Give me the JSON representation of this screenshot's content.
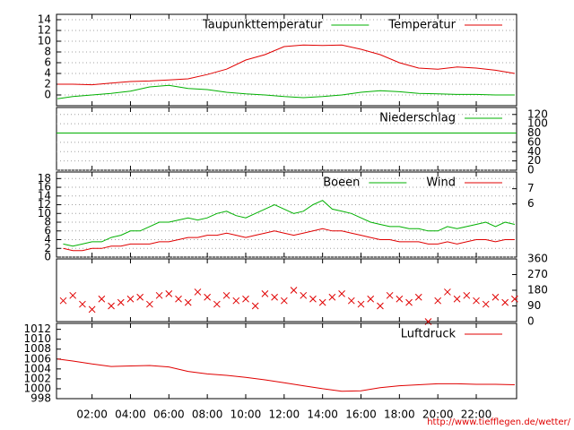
{
  "footer": "http://www.tiefflegen.de/wetter/",
  "chart_data": [
    {
      "type": "line",
      "xlim": [
        0.15,
        24.1
      ],
      "ylim": [
        -2,
        15
      ],
      "yticks": [
        0,
        2,
        4,
        6,
        8,
        10,
        12,
        14
      ],
      "grid": true,
      "x": [
        0.2,
        1,
        2,
        3,
        4,
        5,
        6,
        7,
        8,
        9,
        10,
        11,
        12,
        13,
        14,
        15,
        16,
        17,
        18,
        19,
        20,
        21,
        22,
        23,
        24
      ],
      "series": [
        {
          "name": "Temperatur",
          "color": "#e00000",
          "values": [
            2,
            2,
            1.9,
            2.2,
            2.5,
            2.6,
            2.8,
            3,
            3.8,
            4.8,
            6.5,
            7.5,
            9,
            9.3,
            9.2,
            9.3,
            8.5,
            7.5,
            6,
            5,
            4.8,
            5.2,
            5,
            4.6,
            4
          ]
        },
        {
          "name": "Taupunkttemperatur",
          "color": "#00b000",
          "values": [
            -0.7,
            -0.3,
            0,
            0.3,
            0.7,
            1.5,
            1.8,
            1.2,
            1,
            0.5,
            0.2,
            0,
            -0.3,
            -0.5,
            -0.3,
            0,
            0.5,
            0.8,
            0.6,
            0.3,
            0.2,
            0.1,
            0.1,
            0,
            0
          ]
        }
      ]
    },
    {
      "type": "line",
      "xlim": [
        0.15,
        24.1
      ],
      "y2lim": [
        0,
        135
      ],
      "y2ticks": [
        0,
        20,
        40,
        60,
        80,
        100,
        120
      ],
      "grid": true,
      "x": [
        0.15,
        24.1
      ],
      "series": [
        {
          "name": "Niederschlag",
          "color": "#00b000",
          "axis": "y2",
          "values": [
            80,
            80
          ]
        }
      ]
    },
    {
      "type": "line",
      "xlim": [
        0.15,
        24.1
      ],
      "ylim": [
        0,
        19.5
      ],
      "yticks": [
        0,
        2,
        4,
        6,
        8,
        10,
        12,
        14,
        16,
        18
      ],
      "y2lim": [
        2.5,
        8.1
      ],
      "y2ticks": [
        6,
        7
      ],
      "grid": true,
      "x": [
        0.5,
        1,
        1.5,
        2,
        2.5,
        3,
        3.5,
        4,
        4.5,
        5,
        5.5,
        6,
        6.5,
        7,
        7.5,
        8,
        8.5,
        9,
        9.5,
        10,
        10.5,
        11,
        11.5,
        12,
        12.5,
        13,
        13.5,
        14,
        14.5,
        15,
        15.5,
        16,
        16.5,
        17,
        17.5,
        18,
        18.5,
        19,
        19.5,
        20,
        20.5,
        21,
        21.5,
        22,
        22.5,
        23,
        23.5,
        24
      ],
      "series": [
        {
          "name": "Wind",
          "color": "#e00000",
          "values": [
            2,
            1.5,
            1.5,
            2,
            2,
            2.5,
            2.5,
            3,
            3,
            3,
            3.5,
            3.5,
            4,
            4.5,
            4.5,
            5,
            5,
            5.5,
            5,
            4.5,
            5,
            5.5,
            6,
            5.5,
            5,
            5.5,
            6,
            6.5,
            6,
            6,
            5.5,
            5,
            4.5,
            4,
            4,
            3.5,
            3.5,
            3.5,
            3,
            3,
            3.5,
            3,
            3.5,
            4,
            4,
            3.5,
            4,
            4
          ]
        },
        {
          "name": "Boeen",
          "color": "#00b000",
          "values": [
            3,
            2.5,
            3,
            3.5,
            3.5,
            4.5,
            5,
            6,
            6,
            7,
            8,
            8,
            8.5,
            9,
            8.5,
            9,
            10,
            10.5,
            9.5,
            9,
            10,
            11,
            12,
            11,
            10,
            10.5,
            12,
            13,
            11,
            10.5,
            10,
            9,
            8,
            7.5,
            7,
            7,
            6.5,
            6.5,
            6,
            6,
            7,
            6.5,
            7,
            7.5,
            8,
            7,
            8,
            7.5
          ]
        }
      ]
    },
    {
      "type": "scatter",
      "xlim": [
        0.15,
        24.1
      ],
      "y2lim": [
        0,
        360
      ],
      "y2ticks": [
        0,
        90,
        180,
        270,
        360
      ],
      "x": [
        0.5,
        1,
        1.5,
        2,
        2.5,
        3,
        3.5,
        4,
        4.5,
        5,
        5.5,
        6,
        6.5,
        7,
        7.5,
        8,
        8.5,
        9,
        9.5,
        10,
        10.5,
        11,
        11.5,
        12,
        12.5,
        13,
        13.5,
        14,
        14.5,
        15,
        15.5,
        16,
        16.5,
        17,
        17.5,
        18,
        18.5,
        19,
        19.5,
        20,
        20.5,
        21,
        21.5,
        22,
        22.5,
        23,
        23.5,
        24
      ],
      "series": [
        {
          "color": "#e00000",
          "axis": "y2",
          "values": [
            120,
            150,
            100,
            70,
            130,
            90,
            110,
            130,
            140,
            100,
            150,
            160,
            130,
            110,
            170,
            140,
            100,
            150,
            120,
            130,
            90,
            160,
            140,
            120,
            180,
            150,
            130,
            110,
            140,
            160,
            120,
            100,
            130,
            90,
            150,
            130,
            110,
            140,
            0,
            120,
            170,
            130,
            150,
            120,
            100,
            140,
            110,
            130
          ]
        }
      ]
    },
    {
      "type": "line",
      "xlim": [
        0.15,
        24.1
      ],
      "ylim": [
        998,
        1013.2
      ],
      "yticks": [
        998,
        1000,
        1002,
        1004,
        1006,
        1008,
        1010,
        1012
      ],
      "grid": false,
      "x": [
        0.2,
        1,
        2,
        3,
        4,
        5,
        6,
        7,
        8,
        9,
        10,
        11,
        12,
        13,
        14,
        15,
        16,
        17,
        18,
        19,
        20,
        21,
        22,
        23,
        24
      ],
      "xticks": [
        {
          "value": 2,
          "label": "02:00"
        },
        {
          "value": 4,
          "label": "04:00"
        },
        {
          "value": 6,
          "label": "06:00"
        },
        {
          "value": 8,
          "label": "08:00"
        },
        {
          "value": 10,
          "label": "10:00"
        },
        {
          "value": 12,
          "label": "12:00"
        },
        {
          "value": 14,
          "label": "14:00"
        },
        {
          "value": 16,
          "label": "16:00"
        },
        {
          "value": 18,
          "label": "18:00"
        },
        {
          "value": 20,
          "label": "20:00"
        },
        {
          "value": 22,
          "label": "22:00"
        }
      ],
      "series": [
        {
          "name": "Luftdruck",
          "color": "#e00000",
          "values": [
            1006,
            1005.6,
            1005,
            1004.5,
            1004.6,
            1004.7,
            1004.4,
            1003.5,
            1003,
            1002.7,
            1002.3,
            1001.8,
            1001.2,
            1000.6,
            1000,
            999.5,
            999.6,
            1000.2,
            1000.6,
            1000.8,
            1001,
            1001,
            1000.9,
            1000.9,
            1000.8
          ]
        }
      ]
    }
  ]
}
